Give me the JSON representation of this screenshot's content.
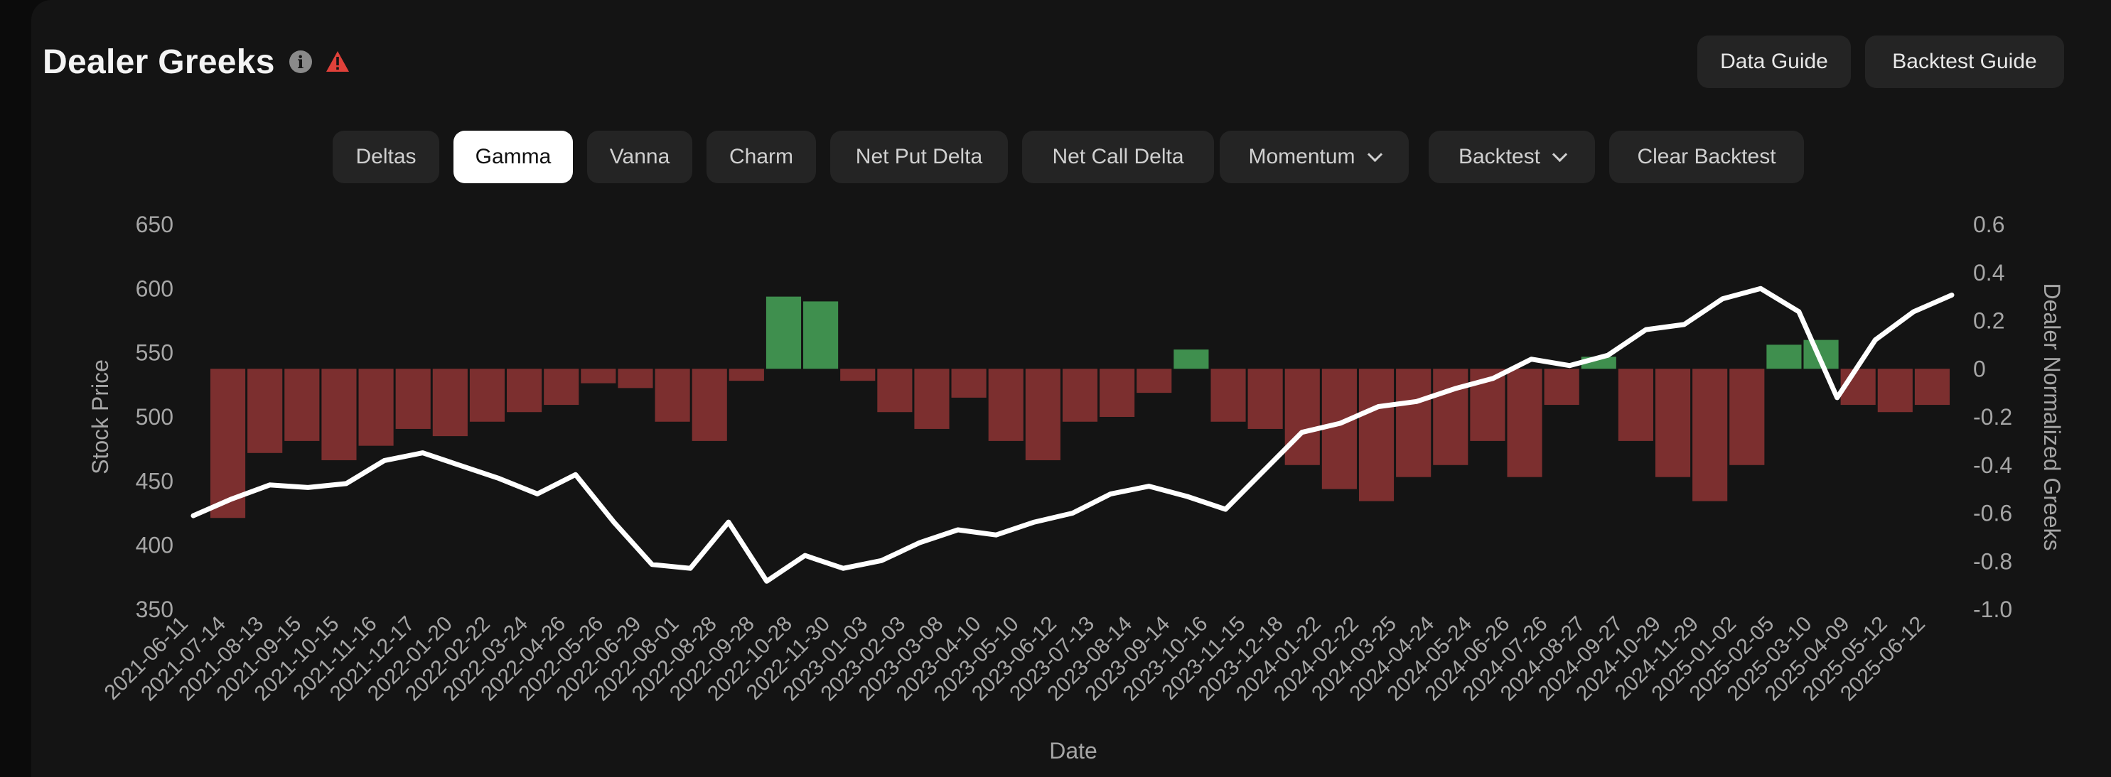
{
  "header": {
    "title": "Dealer Greeks",
    "info_icon": "info-icon",
    "warning_icon": "warning-triangle-icon",
    "data_guide_label": "Data Guide",
    "backtest_guide_label": "Backtest Guide"
  },
  "tabs": [
    {
      "label": "Deltas",
      "active": false,
      "dropdown": false
    },
    {
      "label": "Gamma",
      "active": true,
      "dropdown": false
    },
    {
      "label": "Vanna",
      "active": false,
      "dropdown": false
    },
    {
      "label": "Charm",
      "active": false,
      "dropdown": false
    },
    {
      "label": "Net Put Delta",
      "active": false,
      "dropdown": false
    },
    {
      "label": "Net Call Delta",
      "active": false,
      "dropdown": false
    },
    {
      "label": "Momentum",
      "active": false,
      "dropdown": true
    },
    {
      "label": "Backtest",
      "active": false,
      "dropdown": true
    },
    {
      "label": "Clear Backtest",
      "active": false,
      "dropdown": false
    }
  ],
  "colors": {
    "positive_bar": "#3f8f4e",
    "negative_bar": "#7c2f2f",
    "price_line": "#ffffff",
    "axis_text": "#a6a6a6"
  },
  "chart_data": {
    "type": "bar",
    "x_label": "Date",
    "y_left_label": "Stock Price",
    "y_right_label": "Dealer Normalized Greeks",
    "y_left_ticks": [
      650,
      600,
      550,
      500,
      450,
      400,
      350
    ],
    "y_left_range": [
      350,
      650
    ],
    "y_right_ticks": [
      "0.6",
      "0.4",
      "0.2",
      "0",
      "-0.2",
      "-0.4",
      "-0.6",
      "-0.8",
      "-1.0"
    ],
    "y_right_range": [
      -1.0,
      0.6
    ],
    "x_tick_labels": [
      "2021-06-11",
      "2021-07-14",
      "2021-08-13",
      "2021-09-15",
      "2021-10-15",
      "2021-11-16",
      "2021-12-17",
      "2022-01-20",
      "2022-02-22",
      "2022-03-24",
      "2022-04-26",
      "2022-05-26",
      "2022-06-29",
      "2022-08-01",
      "2022-08-28",
      "2022-09-28",
      "2022-10-28",
      "2022-11-30",
      "2023-01-03",
      "2023-02-03",
      "2023-03-08",
      "2023-04-10",
      "2023-05-10",
      "2023-06-12",
      "2023-07-13",
      "2023-08-14",
      "2023-09-14",
      "2023-10-16",
      "2023-11-15",
      "2023-12-18",
      "2024-01-22",
      "2024-02-22",
      "2024-03-25",
      "2024-04-24",
      "2024-05-24",
      "2024-06-26",
      "2024-07-26",
      "2024-08-27",
      "2024-09-27",
      "2024-10-29",
      "2024-11-29",
      "2025-01-02",
      "2025-02-05",
      "2025-03-10",
      "2025-04-09",
      "2025-05-12",
      "2025-06-12"
    ],
    "series": [
      {
        "kind": "bar",
        "axis": "right",
        "note": "dealer gamma (sampled per tick period)",
        "values": [
          -0.62,
          -0.35,
          -0.3,
          -0.38,
          -0.32,
          -0.25,
          -0.28,
          -0.22,
          -0.18,
          -0.15,
          -0.06,
          -0.08,
          -0.22,
          -0.3,
          -0.05,
          0.3,
          0.28,
          -0.05,
          -0.18,
          -0.25,
          -0.12,
          -0.3,
          -0.38,
          -0.22,
          -0.2,
          -0.1,
          0.08,
          -0.22,
          -0.25,
          -0.4,
          -0.5,
          -0.55,
          -0.45,
          -0.4,
          -0.3,
          -0.45,
          -0.15,
          0.05,
          -0.3,
          -0.45,
          -0.55,
          -0.4,
          0.1,
          0.12,
          -0.15,
          -0.18,
          -0.15
        ]
      },
      {
        "kind": "line",
        "axis": "left",
        "name": "Stock Price",
        "values": [
          423,
          436,
          447,
          445,
          448,
          466,
          472,
          462,
          452,
          440,
          455,
          418,
          385,
          382,
          418,
          372,
          392,
          382,
          388,
          402,
          412,
          408,
          418,
          425,
          440,
          446,
          438,
          428,
          458,
          488,
          495,
          508,
          512,
          522,
          530,
          545,
          540,
          548,
          568,
          572,
          592,
          600,
          582,
          515,
          560,
          582,
          595
        ]
      }
    ]
  }
}
